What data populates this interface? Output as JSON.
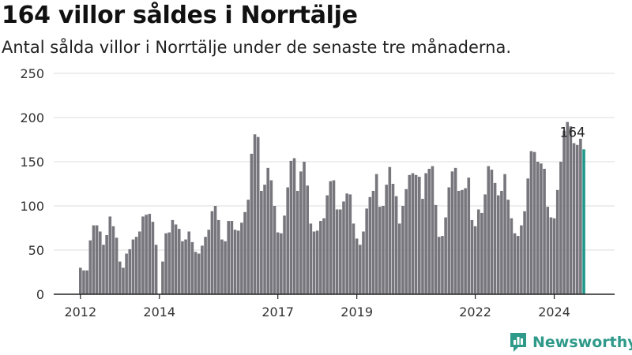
{
  "header": {
    "title": "164 villor såldes i Norrtälje",
    "subtitle": "Antal sålda villor i Norrtälje under de senaste tre månaderna."
  },
  "brand": {
    "name": "Newsworthy",
    "color": "#2f9a8a"
  },
  "colors": {
    "bar": "#77767c",
    "highlight": "#1f9a8a",
    "grid": "#dcdcdc"
  },
  "chart_data": {
    "type": "bar",
    "title": "164 villor såldes i Norrtälje",
    "subtitle": "Antal sålda villor i Norrtälje under de senaste tre månaderna.",
    "xlabel": "",
    "ylabel": "",
    "ylim": [
      0,
      250
    ],
    "yticks": [
      0,
      50,
      100,
      150,
      200,
      250
    ],
    "xticks": [
      "2012",
      "2014",
      "2017",
      "2019",
      "2022",
      "2024"
    ],
    "grid": true,
    "start": "2012-01",
    "series": [
      {
        "values": [
          30,
          27,
          27,
          61,
          78,
          78,
          71,
          56,
          67,
          88,
          77,
          64,
          37,
          30,
          46,
          51,
          62,
          65,
          71,
          88,
          90,
          91,
          82,
          56,
          0,
          37,
          69,
          70,
          84,
          79,
          74,
          60,
          62,
          71,
          59,
          48,
          46,
          55,
          65,
          73,
          94,
          100,
          84,
          62,
          60,
          83,
          83,
          73,
          72,
          81,
          93,
          107,
          159,
          181,
          178,
          117,
          124,
          143,
          129,
          100,
          70,
          69,
          89,
          121,
          151,
          154,
          117,
          139,
          150,
          123,
          80,
          71,
          72,
          83,
          86,
          112,
          128,
          129,
          96,
          96,
          105,
          114,
          113,
          80,
          63,
          56,
          71,
          97,
          110,
          117,
          136,
          99,
          100,
          124,
          144,
          125,
          111,
          80,
          100,
          119,
          135,
          137,
          135,
          133,
          108,
          137,
          142,
          145,
          101,
          65,
          66,
          87,
          121,
          139,
          143,
          117,
          118,
          120,
          132,
          84,
          77,
          96,
          92,
          113,
          145,
          141,
          126,
          112,
          117,
          136,
          107,
          86,
          69,
          66,
          78,
          94,
          131,
          162,
          161,
          150,
          148,
          142,
          99,
          87,
          86,
          118,
          150,
          185,
          195,
          190,
          171,
          169,
          176,
          164
        ]
      }
    ],
    "highlight_last": true,
    "annotation": {
      "text": "164"
    }
  }
}
